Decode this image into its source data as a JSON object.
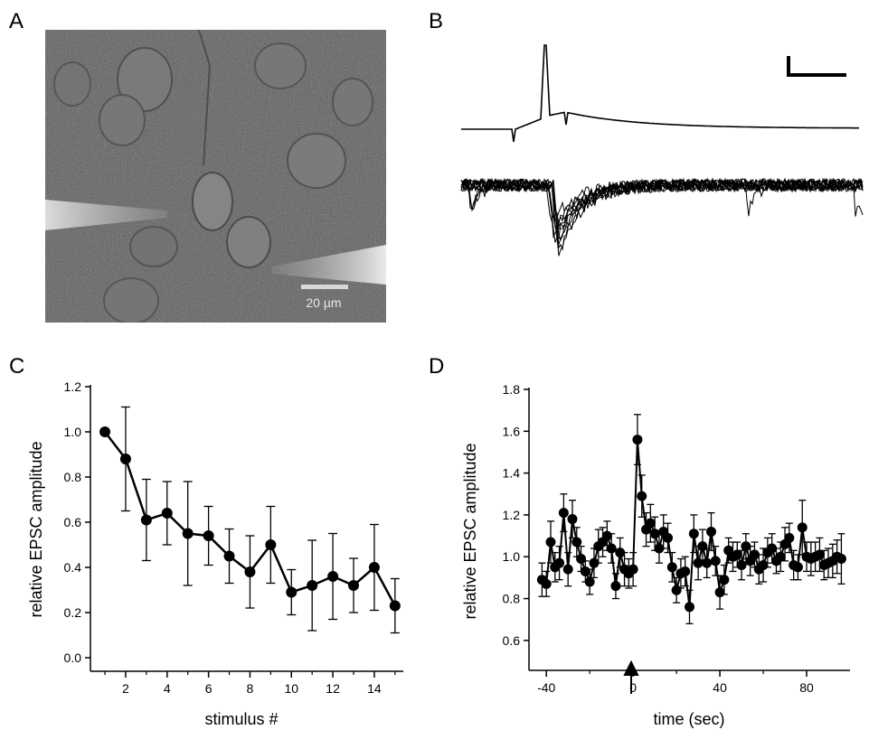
{
  "panels": {
    "a_label": "A",
    "b_label": "B",
    "c_label": "C",
    "d_label": "D"
  },
  "panel_a": {
    "scale_bar_label": "20 µm"
  },
  "colors": {
    "marker": "#000000",
    "line": "#000000",
    "micrograph_bg": "#6e6e6e",
    "scale_bar": "#d8d8d8"
  },
  "chart_data": [
    {
      "type": "line",
      "panel": "C",
      "xlabel": "stimulus #",
      "ylabel": "relative EPSC amplitude",
      "xlim": [
        0.3,
        15.4
      ],
      "ylim": [
        -0.02,
        1.2
      ],
      "xticks": [
        2,
        4,
        6,
        8,
        10,
        12,
        14
      ],
      "xticks_minor": [
        1,
        3,
        5,
        7,
        9,
        11,
        13,
        15
      ],
      "yticks": [
        0.0,
        0.2,
        0.4,
        0.6,
        0.8,
        1.0,
        1.2
      ],
      "ytick_labels": [
        "0.0",
        "0.2",
        "0.4",
        "0.6",
        "0.8",
        "1.0",
        "1.2"
      ],
      "xtick_labels": [
        "2",
        "4",
        "6",
        "8",
        "10",
        "12",
        "14"
      ],
      "x": [
        1,
        2,
        3,
        4,
        5,
        6,
        7,
        8,
        9,
        10,
        11,
        12,
        13,
        14,
        15
      ],
      "y": [
        1.0,
        0.88,
        0.61,
        0.64,
        0.55,
        0.54,
        0.45,
        0.38,
        0.5,
        0.29,
        0.32,
        0.36,
        0.32,
        0.4,
        0.23
      ],
      "error": [
        0.0,
        0.23,
        0.18,
        0.14,
        0.23,
        0.13,
        0.12,
        0.16,
        0.17,
        0.1,
        0.2,
        0.19,
        0.12,
        0.19,
        0.12
      ],
      "grid": false
    },
    {
      "type": "line",
      "panel": "D",
      "xlabel": "time (sec)",
      "ylabel": "relative EPSC amplitude",
      "xlim": [
        -48,
        100
      ],
      "ylim": [
        0.5,
        1.8
      ],
      "xticks": [
        -40,
        0,
        40,
        80
      ],
      "xtick_labels": [
        "-40",
        "0",
        "40",
        "80"
      ],
      "xticks_minor": [
        -20,
        20,
        60
      ],
      "yticks": [
        0.6,
        0.8,
        1.0,
        1.2,
        1.4,
        1.6,
        1.8
      ],
      "ytick_labels": [
        "0.6",
        "0.8",
        "1.0",
        "1.2",
        "1.4",
        "1.6",
        "1.8"
      ],
      "annotation": "arrow at stimulus time 0",
      "arrow_x": 0,
      "x": [
        -42,
        -40,
        -38,
        -36,
        -34,
        -32,
        -30,
        -28,
        -26,
        -24,
        -22,
        -20,
        -18,
        -16,
        -14,
        -12,
        -10,
        -8,
        -6,
        -4,
        -2,
        0,
        2,
        4,
        6,
        8,
        10,
        12,
        14,
        16,
        18,
        20,
        22,
        24,
        26,
        28,
        30,
        32,
        34,
        36,
        38,
        40,
        42,
        44,
        46,
        48,
        50,
        52,
        54,
        56,
        58,
        60,
        62,
        64,
        66,
        68,
        70,
        72,
        74,
        76,
        78,
        80,
        82,
        84,
        86,
        88,
        90,
        92,
        94,
        96
      ],
      "y": [
        0.89,
        0.87,
        1.07,
        0.95,
        0.97,
        1.21,
        0.94,
        1.18,
        1.07,
        0.99,
        0.93,
        0.88,
        0.97,
        1.05,
        1.07,
        1.1,
        1.04,
        0.86,
        1.02,
        0.94,
        0.92,
        0.94,
        1.56,
        1.29,
        1.13,
        1.16,
        1.11,
        1.04,
        1.12,
        1.09,
        0.95,
        0.84,
        0.92,
        0.93,
        0.76,
        1.11,
        0.97,
        1.05,
        0.97,
        1.12,
        0.98,
        0.83,
        0.89,
        1.03,
        1.0,
        1.01,
        0.96,
        1.05,
        0.98,
        1.01,
        0.94,
        0.96,
        1.02,
        1.04,
        0.98,
        1.0,
        1.06,
        1.09,
        0.96,
        0.95,
        1.14,
        1.0,
        0.99,
        1.0,
        1.01,
        0.96,
        0.97,
        0.98,
        1.0,
        0.99
      ],
      "error": [
        0.08,
        0.06,
        0.1,
        0.07,
        0.08,
        0.09,
        0.08,
        0.09,
        0.07,
        0.06,
        0.05,
        0.06,
        0.07,
        0.08,
        0.07,
        0.07,
        0.07,
        0.06,
        0.07,
        0.08,
        0.07,
        0.08,
        0.12,
        0.1,
        0.08,
        0.09,
        0.08,
        0.07,
        0.08,
        0.07,
        0.07,
        0.06,
        0.07,
        0.07,
        0.08,
        0.09,
        0.08,
        0.08,
        0.07,
        0.09,
        0.07,
        0.08,
        0.07,
        0.06,
        0.07,
        0.06,
        0.07,
        0.06,
        0.07,
        0.06,
        0.07,
        0.08,
        0.07,
        0.07,
        0.06,
        0.07,
        0.08,
        0.07,
        0.07,
        0.06,
        0.13,
        0.07,
        0.08,
        0.07,
        0.08,
        0.07,
        0.07,
        0.08,
        0.08,
        0.12
      ],
      "grid": false
    }
  ]
}
